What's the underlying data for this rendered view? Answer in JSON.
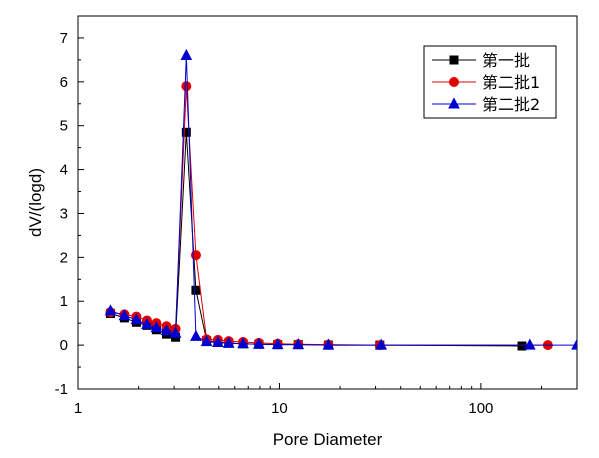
{
  "chart_data": {
    "type": "line",
    "title": "",
    "xlabel": "Pore Diameter",
    "ylabel": "dV/(logd)",
    "x_scale": "log",
    "xlim": [
      1,
      300
    ],
    "ylim": [
      -1,
      7.5
    ],
    "x_ticks": [
      1,
      10,
      100
    ],
    "y_ticks": [
      -1,
      0,
      1,
      2,
      3,
      4,
      5,
      6,
      7
    ],
    "grid": false,
    "legend_position": "top-right",
    "series": [
      {
        "name": "第一批",
        "color": "#000000",
        "marker": "square",
        "x": [
          1.45,
          1.7,
          1.95,
          2.2,
          2.45,
          2.75,
          3.05,
          3.45,
          3.85,
          4.35,
          4.95,
          5.6,
          6.6,
          7.9,
          9.8,
          12.4,
          17.5,
          31.5,
          160
        ],
        "y": [
          0.72,
          0.62,
          0.52,
          0.45,
          0.35,
          0.25,
          0.18,
          4.85,
          1.25,
          0.1,
          0.07,
          0.05,
          0.03,
          0.02,
          0.01,
          0.01,
          0.0,
          0.0,
          -0.02
        ]
      },
      {
        "name": "第二批1",
        "color": "#e00000",
        "marker": "circle",
        "x": [
          1.45,
          1.7,
          1.95,
          2.2,
          2.45,
          2.75,
          3.05,
          3.45,
          3.85,
          4.35,
          4.95,
          5.6,
          6.6,
          7.9,
          9.8,
          12.4,
          17.5,
          31.5,
          215
        ],
        "y": [
          0.75,
          0.7,
          0.65,
          0.56,
          0.5,
          0.43,
          0.37,
          5.9,
          2.05,
          0.13,
          0.12,
          0.09,
          0.07,
          0.05,
          0.03,
          0.02,
          0.01,
          0.0,
          0.0
        ]
      },
      {
        "name": "第二批2",
        "color": "#0000d0",
        "marker": "triangle",
        "x": [
          1.45,
          1.7,
          1.95,
          2.2,
          2.45,
          2.75,
          3.05,
          3.45,
          3.85,
          4.35,
          4.95,
          5.6,
          6.6,
          7.9,
          9.8,
          12.4,
          17.5,
          32,
          175,
          300
        ],
        "y": [
          0.78,
          0.67,
          0.58,
          0.47,
          0.4,
          0.33,
          0.27,
          6.6,
          0.2,
          0.08,
          0.06,
          0.04,
          0.03,
          0.02,
          0.01,
          0.01,
          0.0,
          0.0,
          0.0,
          0.0
        ]
      }
    ]
  }
}
